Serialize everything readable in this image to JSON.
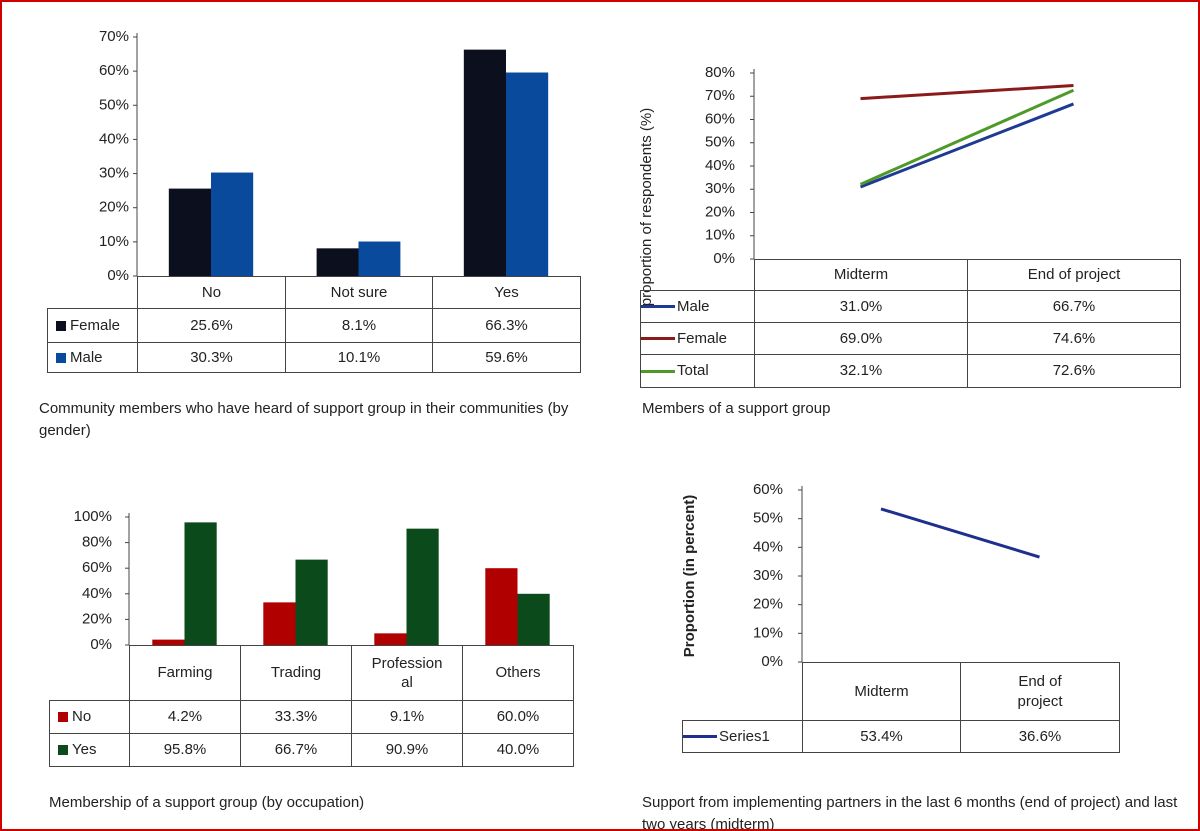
{
  "chart_data": [
    {
      "type": "bar",
      "caption": "Community members who have heard of support group in their communities (by gender)",
      "categories": [
        "No",
        "Not sure",
        "Yes"
      ],
      "series": [
        {
          "name": "Female",
          "color": "#0b0f1e",
          "values": [
            25.6,
            8.1,
            66.3
          ],
          "value_labels": [
            "25.6%",
            "8.1%",
            "66.3%"
          ]
        },
        {
          "name": "Male",
          "color": "#0a4a9c",
          "values": [
            30.3,
            10.1,
            59.6
          ],
          "value_labels": [
            "30.3%",
            "10.1%",
            "59.6%"
          ]
        }
      ],
      "ylim": [
        0,
        70
      ],
      "yticks": [
        {
          "value": 0,
          "label": "0%"
        },
        {
          "value": 10,
          "label": "10%"
        },
        {
          "value": 20,
          "label": "20%"
        },
        {
          "value": 30,
          "label": "30%"
        },
        {
          "value": 40,
          "label": "40%"
        },
        {
          "value": 50,
          "label": "50%"
        },
        {
          "value": 60,
          "label": "60%"
        },
        {
          "value": 70,
          "label": "70%"
        }
      ],
      "grid": false
    },
    {
      "type": "line",
      "caption": "Members of a support group",
      "ylabel": "proportion of respondents (%)",
      "categories": [
        "Midterm",
        "End of project"
      ],
      "series": [
        {
          "name": "Male",
          "color": "#1f3a93",
          "values": [
            31.0,
            66.7
          ],
          "value_labels": [
            "31.0%",
            "66.7%"
          ]
        },
        {
          "name": "Female",
          "color": "#8b1a1a",
          "values": [
            69.0,
            74.6
          ],
          "value_labels": [
            "69.0%",
            "74.6%"
          ]
        },
        {
          "name": "Total",
          "color": "#4e9a28",
          "values": [
            32.1,
            72.6
          ],
          "value_labels": [
            "32.1%",
            "72.6%"
          ]
        }
      ],
      "ylim": [
        0,
        80
      ],
      "yticks": [
        {
          "value": 0,
          "label": "0%"
        },
        {
          "value": 10,
          "label": "10%"
        },
        {
          "value": 20,
          "label": "20%"
        },
        {
          "value": 30,
          "label": "30%"
        },
        {
          "value": 40,
          "label": "40%"
        },
        {
          "value": 50,
          "label": "50%"
        },
        {
          "value": 60,
          "label": "60%"
        },
        {
          "value": 70,
          "label": "70%"
        },
        {
          "value": 80,
          "label": "80%"
        }
      ],
      "grid": false
    },
    {
      "type": "bar",
      "caption": "Membership of a support group (by occupation)",
      "categories": [
        "Farming",
        "Trading",
        "Professional",
        "Others"
      ],
      "series": [
        {
          "name": "No",
          "color": "#b00000",
          "values": [
            4.2,
            33.3,
            9.1,
            60.0
          ],
          "value_labels": [
            "4.2%",
            "33.3%",
            "9.1%",
            "60.0%"
          ]
        },
        {
          "name": "Yes",
          "color": "#0b4a1a",
          "values": [
            95.8,
            66.7,
            90.9,
            40.0
          ],
          "value_labels": [
            "95.8%",
            "66.7%",
            "90.9%",
            "40.0%"
          ]
        }
      ],
      "ylim": [
        0,
        100
      ],
      "yticks": [
        {
          "value": 0,
          "label": "0%"
        },
        {
          "value": 20,
          "label": "20%"
        },
        {
          "value": 40,
          "label": "40%"
        },
        {
          "value": 60,
          "label": "60%"
        },
        {
          "value": 80,
          "label": "80%"
        },
        {
          "value": 100,
          "label": "100%"
        }
      ],
      "grid": false
    },
    {
      "type": "line",
      "caption": "Support from implementing partners in the last 6 months (end of project) and last two years (midterm)",
      "ylabel": "Proportion (in percent)",
      "categories": [
        "Midterm",
        "End of project"
      ],
      "series": [
        {
          "name": "Series1",
          "color": "#1f2f8f",
          "values": [
            53.4,
            36.6
          ],
          "value_labels": [
            "53.4%",
            "36.6%"
          ]
        }
      ],
      "ylim": [
        0,
        60
      ],
      "yticks": [
        {
          "value": 0,
          "label": "0%"
        },
        {
          "value": 10,
          "label": "10%"
        },
        {
          "value": 20,
          "label": "20%"
        },
        {
          "value": 30,
          "label": "30%"
        },
        {
          "value": 40,
          "label": "40%"
        },
        {
          "value": 50,
          "label": "50%"
        },
        {
          "value": 60,
          "label": "60%"
        }
      ],
      "grid": false
    }
  ]
}
